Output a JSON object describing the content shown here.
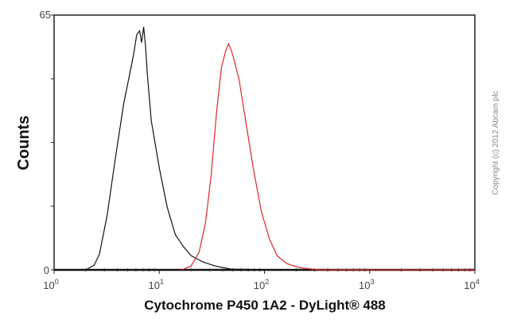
{
  "chart_data": {
    "type": "line",
    "title": "",
    "xlabel": "Cytochrome P450 1A2  - DyLight® 488",
    "ylabel": "Counts",
    "xscale": "log",
    "xlim": [
      1,
      10000
    ],
    "ylim": [
      0,
      65
    ],
    "x_ticks": [
      {
        "base": "10",
        "exp": "0"
      },
      {
        "base": "10",
        "exp": "1"
      },
      {
        "base": "10",
        "exp": "2"
      },
      {
        "base": "10",
        "exp": "3"
      },
      {
        "base": "10",
        "exp": "4"
      }
    ],
    "y_ticks": [
      "0",
      "65"
    ],
    "grid": false,
    "series": [
      {
        "color": "#111111",
        "x": [
          2.0,
          2.4,
          2.7,
          3.2,
          3.8,
          4.6,
          5.2,
          5.7,
          6.1,
          6.5,
          6.8,
          7.1,
          7.4,
          7.7,
          8.4,
          10,
          11.9,
          14.2,
          16.9,
          20.1,
          26.1,
          33.9,
          48,
          100,
          1000,
          10000
        ],
        "y": [
          0,
          1.2,
          4,
          14,
          28,
          42.5,
          49.6,
          55,
          60,
          61,
          58,
          62,
          57,
          50,
          38,
          26,
          16,
          9,
          6,
          3.6,
          2,
          1,
          0.2,
          0,
          0,
          0
        ]
      },
      {
        "color": "#e0262b",
        "x": [
          16.3,
          20.1,
          23.9,
          27.5,
          31.1,
          35.1,
          39.0,
          42.6,
          45.6,
          48.9,
          52.5,
          57.3,
          65.8,
          78.3,
          93.3,
          111,
          132,
          163,
          212,
          327,
          1000,
          10000
        ],
        "y": [
          0,
          1,
          4.5,
          12,
          24,
          40.5,
          51.6,
          55.7,
          57.7,
          55.7,
          52.6,
          48.6,
          38.5,
          26,
          15,
          8,
          3.6,
          1.6,
          0.6,
          0,
          0,
          0
        ]
      }
    ]
  },
  "copyright": "Copyright (c) 2012 Abcam plc"
}
